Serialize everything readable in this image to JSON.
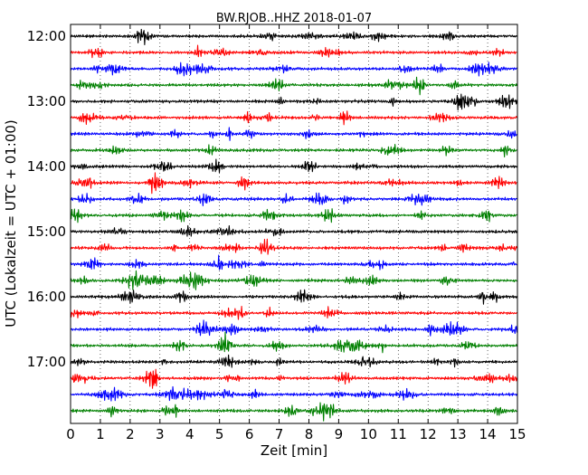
{
  "chart_data": {
    "type": "line",
    "title": "BW.RJOB..HHZ 2018-01-07",
    "xlabel": "Zeit  [min]",
    "ylabel": "UTC (Lokalzeit = UTC + 01:00)",
    "xlim": [
      0,
      15
    ],
    "xticks": [
      "0",
      "1",
      "2",
      "3",
      "4",
      "5",
      "6",
      "7",
      "8",
      "9",
      "10",
      "11",
      "12",
      "13",
      "14",
      "15"
    ],
    "yticks": [
      "12:00",
      "13:00",
      "14:00",
      "15:00",
      "16:00",
      "17:00"
    ],
    "grid": true,
    "trace_colors": [
      "#000000",
      "#ff0000",
      "#0000ff",
      "#008000"
    ],
    "series": [
      {
        "start": "12:00"
      },
      {
        "start": "12:15"
      },
      {
        "start": "12:30"
      },
      {
        "start": "12:45"
      },
      {
        "start": "13:00"
      },
      {
        "start": "13:15"
      },
      {
        "start": "13:30"
      },
      {
        "start": "13:45"
      },
      {
        "start": "14:00"
      },
      {
        "start": "14:15"
      },
      {
        "start": "14:30"
      },
      {
        "start": "14:45"
      },
      {
        "start": "15:00"
      },
      {
        "start": "15:15"
      },
      {
        "start": "15:30"
      },
      {
        "start": "15:45"
      },
      {
        "start": "16:00"
      },
      {
        "start": "16:15"
      },
      {
        "start": "16:30"
      },
      {
        "start": "16:45"
      },
      {
        "start": "17:00"
      },
      {
        "start": "17:15"
      },
      {
        "start": "17:30"
      },
      {
        "start": "17:45"
      }
    ]
  }
}
